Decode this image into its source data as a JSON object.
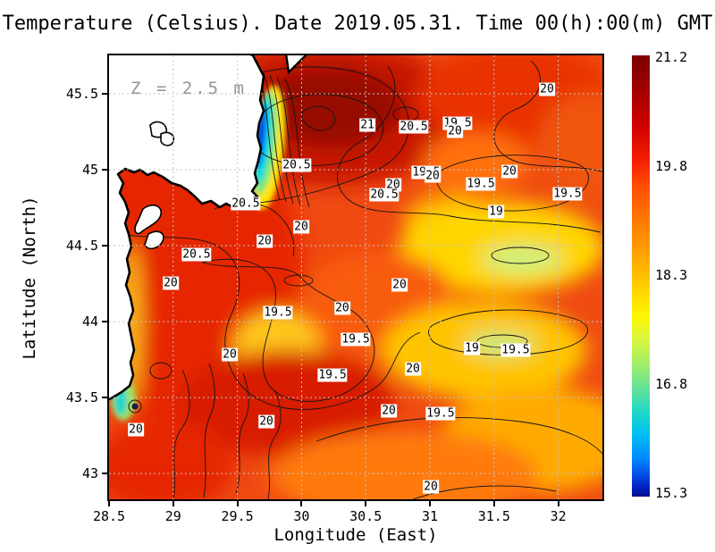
{
  "title": "Temperature (Celsius). Date 2019.05.31. Time 00(h):00(m) GMT",
  "annotation": "Z = 2.5 m",
  "axes": {
    "x_label": "Longitude (East)",
    "y_label": "Latitude (North)",
    "x_ticks": [
      "28.5",
      "29",
      "29.5",
      "30",
      "30.5",
      "31",
      "31.5",
      "32"
    ],
    "y_ticks": [
      "45.5",
      "45",
      "44.5",
      "44",
      "43.5",
      "43"
    ]
  },
  "colorbar": {
    "ticks": [
      "21.2",
      "19.8",
      "18.3",
      "16.8",
      "15.3"
    ]
  },
  "chart_data": {
    "type": "heatmap",
    "title": "Temperature (Celsius). Date 2019.05.31. Time 00(h):00(m) GMT",
    "xlabel": "Longitude (East)",
    "ylabel": "Latitude (North)",
    "units": "Celsius",
    "depth_annotation": "Z = 2.5 m",
    "date": "2019.05.31",
    "time": "00(h):00(m) GMT",
    "x_range": [
      28.5,
      32.344
    ],
    "y_range": [
      42.83,
      45.753
    ],
    "x_ticks": [
      28.5,
      29,
      29.5,
      30,
      30.5,
      31,
      31.5,
      32
    ],
    "y_ticks": [
      45.5,
      45,
      44.5,
      44,
      43.5,
      43
    ],
    "value_range": [
      15.3,
      21.2
    ],
    "colorbar_ticks": [
      21.2,
      19.8,
      18.3,
      16.8,
      15.3
    ],
    "colormap": "jet",
    "contour_interval": 0.5,
    "grid": true,
    "land_color": "#ffffff",
    "contour_labels": [
      {
        "v": "21",
        "lon": 30.513,
        "lat": 45.294
      },
      {
        "v": "20.5",
        "lon": 30.875,
        "lat": 45.282
      },
      {
        "v": "19.5",
        "lon": 31.216,
        "lat": 45.306
      },
      {
        "v": "20",
        "lon": 31.195,
        "lat": 45.253
      },
      {
        "v": "20",
        "lon": 31.912,
        "lat": 45.529
      },
      {
        "v": "20.5",
        "lon": 29.962,
        "lat": 45.029
      },
      {
        "v": "20",
        "lon": 31.62,
        "lat": 44.988
      },
      {
        "v": "19.5",
        "lon": 30.972,
        "lat": 44.982
      },
      {
        "v": "20",
        "lon": 31.021,
        "lat": 44.959
      },
      {
        "v": "19.5",
        "lon": 31.397,
        "lat": 44.906
      },
      {
        "v": "20",
        "lon": 30.714,
        "lat": 44.9
      },
      {
        "v": "20.5",
        "lon": 30.645,
        "lat": 44.835
      },
      {
        "v": "19.5",
        "lon": 32.072,
        "lat": 44.841
      },
      {
        "v": "19",
        "lon": 31.515,
        "lat": 44.724
      },
      {
        "v": "20.5",
        "lon": 29.565,
        "lat": 44.776
      },
      {
        "v": "20",
        "lon": 29.997,
        "lat": 44.624
      },
      {
        "v": "20",
        "lon": 29.712,
        "lat": 44.529
      },
      {
        "v": "20.5",
        "lon": 29.182,
        "lat": 44.441
      },
      {
        "v": "20",
        "lon": 28.98,
        "lat": 44.253
      },
      {
        "v": "20",
        "lon": 30.763,
        "lat": 44.241
      },
      {
        "v": "20",
        "lon": 30.317,
        "lat": 44.088
      },
      {
        "v": "19.5",
        "lon": 29.816,
        "lat": 44.059
      },
      {
        "v": "19.5",
        "lon": 30.422,
        "lat": 43.882
      },
      {
        "v": "19.5",
        "lon": 30.241,
        "lat": 43.647
      },
      {
        "v": "20",
        "lon": 30.868,
        "lat": 43.688
      },
      {
        "v": "19",
        "lon": 31.327,
        "lat": 43.824
      },
      {
        "v": "19.5",
        "lon": 31.668,
        "lat": 43.812
      },
      {
        "v": "20",
        "lon": 29.44,
        "lat": 43.782
      },
      {
        "v": "20",
        "lon": 30.68,
        "lat": 43.412
      },
      {
        "v": "19.5",
        "lon": 31.083,
        "lat": 43.394
      },
      {
        "v": "20",
        "lon": 29.726,
        "lat": 43.341
      },
      {
        "v": "20",
        "lon": 28.709,
        "lat": 43.288
      },
      {
        "v": "20",
        "lon": 31.007,
        "lat": 42.912
      }
    ]
  }
}
